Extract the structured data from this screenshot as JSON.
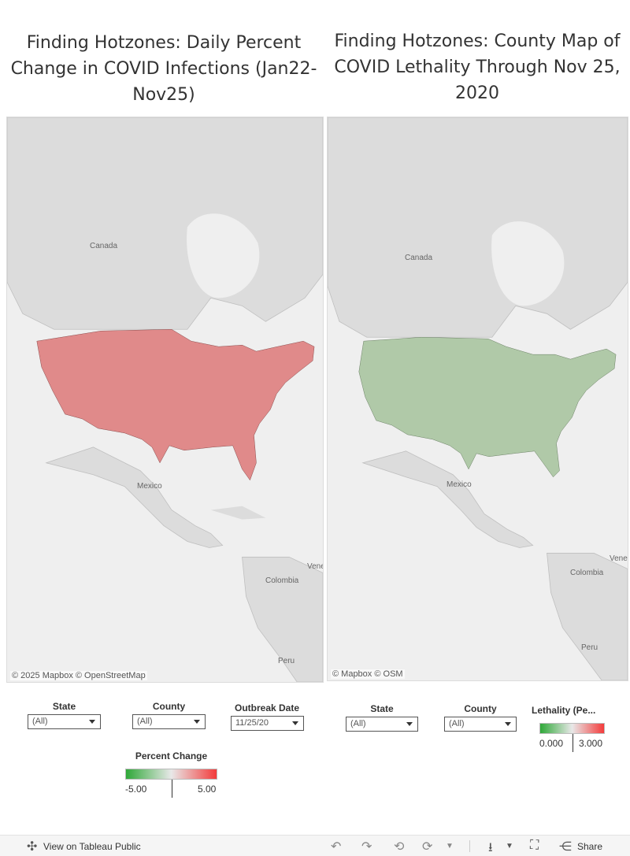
{
  "left_panel": {
    "title": "Finding Hotzones: Daily Percent Change in COVID Infections (Jan22-Nov25)",
    "attribution": "© 2025 Mapbox  © OpenStreetMap",
    "labels": {
      "canada": "Canada",
      "mexico": "Mexico",
      "colombia": "Colombia",
      "peru": "Peru",
      "venezuela": "Vene"
    },
    "filters": {
      "state": {
        "label": "State",
        "value": "(All)"
      },
      "county": {
        "label": "County",
        "value": "(All)"
      },
      "date": {
        "label": "Outbreak Date",
        "value": "11/25/20"
      }
    },
    "legend": {
      "title": "Percent Change",
      "min": "-5.00",
      "max": "5.00"
    }
  },
  "right_panel": {
    "title": "Finding Hotzones: County Map of COVID Lethality Through Nov 25, 2020",
    "attribution": "© Mapbox  © OSM",
    "labels": {
      "canada": "Canada",
      "mexico": "Mexico",
      "colombia": "Colombia",
      "peru": "Peru",
      "venezuela": "Vene"
    },
    "filters": {
      "state": {
        "label": "State",
        "value": "(All)"
      },
      "county": {
        "label": "County",
        "value": "(All)"
      }
    },
    "legend": {
      "title": "Lethality (Pe...",
      "min": "0.000",
      "max": "3.000"
    }
  },
  "colors": {
    "low": "#2fa838",
    "mid": "#e8e8e8",
    "high": "#f33b3b",
    "land": "#dcdcdc",
    "water": "#efefef"
  },
  "footer": {
    "view_label": "View on Tableau Public",
    "share_label": "Share"
  }
}
